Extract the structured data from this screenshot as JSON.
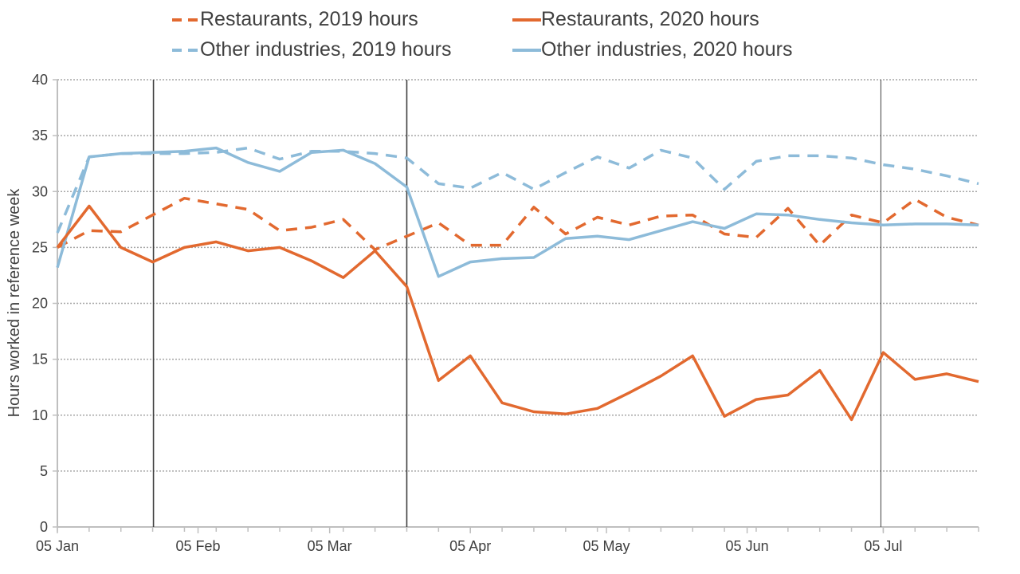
{
  "chart_data": {
    "type": "line",
    "title": "",
    "xlabel": "",
    "ylabel": "Hours worked in reference week",
    "ylim": [
      0,
      40
    ],
    "yticks": [
      0,
      5,
      10,
      15,
      20,
      25,
      30,
      35,
      40
    ],
    "xtick_labels": [
      "05 Jan",
      "05 Feb",
      "05 Mar",
      "05 Apr",
      "05 May",
      "05 Jun",
      "05 Jul"
    ],
    "grid": "horizontal dotted",
    "legend_position": "top",
    "x": [
      "05 Jan",
      "12 Jan",
      "19 Jan",
      "26 Jan",
      "02 Feb",
      "09 Feb",
      "16 Feb",
      "23 Feb",
      "01 Mar",
      "08 Mar",
      "15 Mar",
      "22 Mar",
      "29 Mar",
      "05 Apr",
      "12 Apr",
      "19 Apr",
      "26 Apr",
      "03 May",
      "10 May",
      "17 May",
      "24 May",
      "31 May",
      "07 Jun",
      "14 Jun",
      "21 Jun",
      "28 Jun",
      "05 Jul",
      "12 Jul",
      "19 Jul",
      "26 Jul"
    ],
    "vertical_markers": [
      "26 Jan",
      "22 Mar",
      "05 Jul"
    ],
    "series": [
      {
        "name": "Restaurants, 2019 hours",
        "color": "#E2692F",
        "style": "dashed",
        "values": [
          25.0,
          26.5,
          26.4,
          27.9,
          29.4,
          28.9,
          28.4,
          26.5,
          26.8,
          27.5,
          24.8,
          26.0,
          27.2,
          25.2,
          25.2,
          28.6,
          26.2,
          27.7,
          27.0,
          27.8,
          27.9,
          26.2,
          25.9,
          28.5,
          25.2,
          27.9,
          27.2,
          29.3,
          27.7,
          27.0
        ]
      },
      {
        "name": "Restaurants, 2020 hours",
        "color": "#E2692F",
        "style": "solid",
        "values": [
          25.0,
          28.7,
          25.0,
          23.7,
          25.0,
          25.5,
          24.7,
          25.0,
          23.8,
          22.3,
          24.7,
          21.5,
          13.1,
          15.3,
          11.1,
          10.3,
          10.1,
          10.6,
          12.0,
          13.5,
          15.3,
          9.9,
          11.4,
          11.8,
          14.0,
          9.6,
          15.6,
          13.2,
          13.7,
          13.0
        ]
      },
      {
        "name": "Other industries, 2019 hours",
        "color": "#8DBBD9",
        "style": "dashed",
        "values": [
          26.3,
          33.1,
          33.4,
          33.4,
          33.4,
          33.5,
          33.9,
          32.9,
          33.6,
          33.6,
          33.4,
          33.0,
          30.7,
          30.3,
          31.7,
          30.2,
          31.7,
          33.1,
          32.1,
          33.7,
          33.0,
          30.2,
          32.7,
          33.2,
          33.2,
          33.0,
          32.4,
          32.0,
          31.4,
          30.7
        ]
      },
      {
        "name": "Other industries, 2020 hours",
        "color": "#8DBBD9",
        "style": "solid",
        "values": [
          23.2,
          33.1,
          33.4,
          33.5,
          33.6,
          33.9,
          32.6,
          31.8,
          33.5,
          33.7,
          32.5,
          30.4,
          22.4,
          23.7,
          24.0,
          24.1,
          25.8,
          26.0,
          25.7,
          26.5,
          27.3,
          26.7,
          28.0,
          27.9,
          27.5,
          27.2,
          27.0,
          27.1,
          27.1,
          27.0
        ]
      }
    ]
  },
  "legend": {
    "items": [
      {
        "label": "Restaurants, 2019 hours",
        "color": "#E2692F",
        "style": "dashed"
      },
      {
        "label": "Restaurants, 2020 hours",
        "color": "#E2692F",
        "style": "solid"
      },
      {
        "label": "Other industries, 2019 hours",
        "color": "#8DBBD9",
        "style": "dashed"
      },
      {
        "label": "Other industries, 2020 hours",
        "color": "#8DBBD9",
        "style": "solid"
      }
    ]
  },
  "axes": {
    "ylabel": "Hours worked in reference week"
  }
}
